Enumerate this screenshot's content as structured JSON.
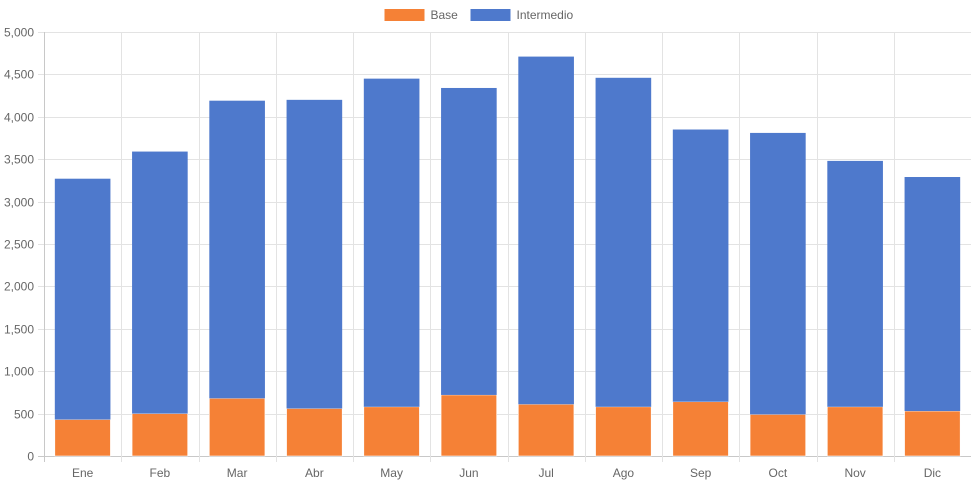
{
  "chart_data": {
    "type": "bar",
    "stacked": true,
    "categories": [
      "Ene",
      "Feb",
      "Mar",
      "Abr",
      "May",
      "Jun",
      "Jul",
      "Ago",
      "Sep",
      "Oct",
      "Nov",
      "Dic"
    ],
    "series": [
      {
        "name": "Base",
        "color": "#f58136",
        "values": [
          430,
          500,
          680,
          560,
          580,
          720,
          610,
          580,
          640,
          490,
          580,
          530
        ]
      },
      {
        "name": "Intermedio",
        "color": "#4e79cc",
        "values": [
          2840,
          3090,
          3510,
          3640,
          3870,
          3620,
          4100,
          3880,
          3210,
          3320,
          2900,
          2760
        ]
      }
    ],
    "title": "",
    "xlabel": "",
    "ylabel": "",
    "ylim": [
      0,
      5000
    ],
    "yticks": [
      "0",
      "500",
      "1,000",
      "1,500",
      "2,000",
      "2,500",
      "3,000",
      "3,500",
      "4,000",
      "4,500",
      "5,000"
    ],
    "grid": true,
    "legend_position": "top-center"
  }
}
